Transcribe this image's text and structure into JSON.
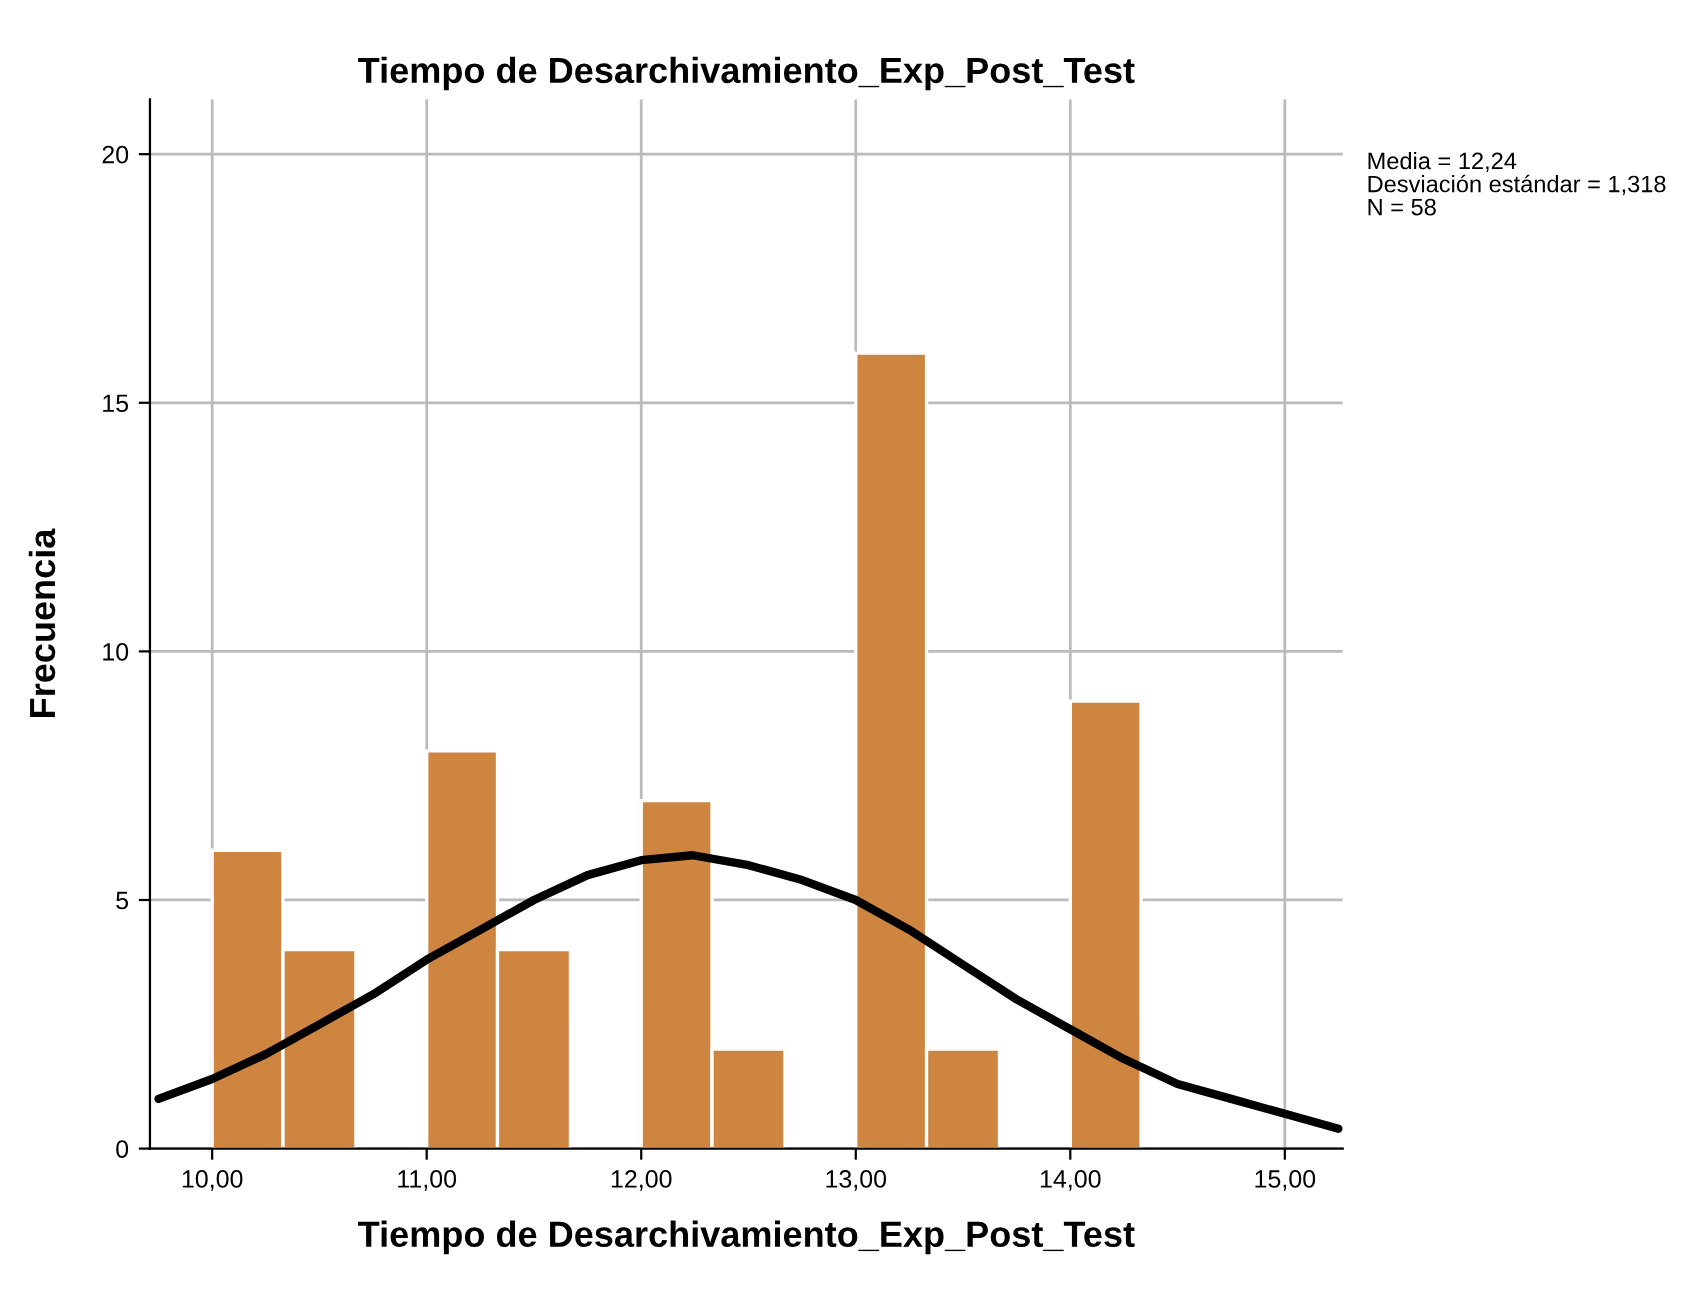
{
  "chart_data": {
    "type": "histogram",
    "title": "Tiempo de Desarchivamiento_Exp_Post_Test",
    "xlabel": "Tiempo de Desarchivamiento_Exp_Post_Test",
    "ylabel": "Frecuencia",
    "bins": [
      10.0,
      10.33,
      10.67,
      11.0,
      11.33,
      11.67,
      12.0,
      12.33,
      12.67,
      13.0,
      13.33,
      13.67,
      14.0,
      14.33
    ],
    "values": [
      6,
      4,
      0,
      8,
      4,
      0,
      7,
      2,
      0,
      16,
      2,
      0,
      9
    ],
    "color": "#cd8540",
    "series": [
      {
        "type": "line",
        "color": "#000000",
        "x": [
          9.75,
          10.0,
          10.25,
          10.5,
          10.75,
          11.0,
          11.25,
          11.5,
          11.75,
          12.0,
          12.24,
          12.5,
          12.75,
          13.0,
          13.25,
          13.5,
          13.75,
          14.0,
          14.25,
          14.5,
          14.75,
          15.0,
          15.25
        ],
        "values": [
          1.0,
          1.4,
          1.9,
          2.5,
          3.1,
          3.8,
          4.4,
          5.0,
          5.5,
          5.8,
          5.9,
          5.7,
          5.4,
          5.0,
          4.4,
          3.7,
          3.0,
          2.4,
          1.8,
          1.3,
          1.0,
          0.7,
          0.4
        ]
      }
    ],
    "xlim": [
      9.71,
      15.27
    ],
    "ylim": [
      0,
      21.1
    ],
    "xticks": [
      {
        "value": 10,
        "label": "10,00"
      },
      {
        "value": 11,
        "label": "11,00"
      },
      {
        "value": 12,
        "label": "12,00"
      },
      {
        "value": 13,
        "label": "13,00"
      },
      {
        "value": 14,
        "label": "14,00"
      },
      {
        "value": 15,
        "label": "15,00"
      }
    ],
    "yticks": [
      0,
      5,
      10,
      15,
      20
    ],
    "grid": true,
    "annotations": [
      "Media = 12,24",
      "Desviación estándar = 1,318",
      "N = 58"
    ]
  }
}
